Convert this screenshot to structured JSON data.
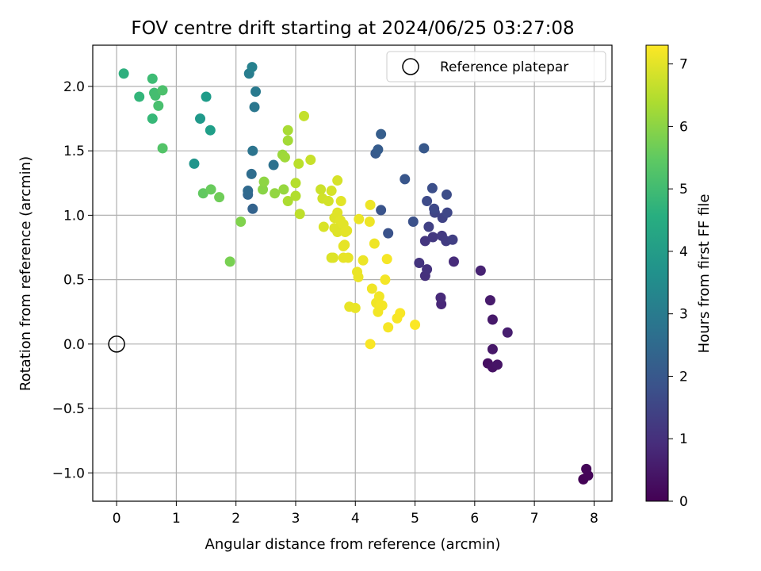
{
  "chart_data": {
    "type": "scatter",
    "title": "FOV centre drift starting at 2024/06/25 03:27:08",
    "xlabel": "Angular distance from reference (arcmin)",
    "ylabel": "Rotation from reference (arcmin)",
    "xlim": [
      -0.4,
      8.3
    ],
    "ylim": [
      -1.22,
      2.32
    ],
    "xticks": [
      "0",
      "1",
      "2",
      "3",
      "4",
      "5",
      "6",
      "7",
      "8"
    ],
    "yticks": [
      "−1.0",
      "−0.5",
      "0.0",
      "0.5",
      "1.0",
      "1.5",
      "2.0"
    ],
    "grid": true,
    "legend": {
      "placement": "top-right",
      "entries": [
        "Reference platepar"
      ]
    },
    "reference": {
      "x": 0,
      "y": 0
    },
    "colorbar": {
      "label": "Hours from first FF file",
      "min": 0,
      "max": 7.3,
      "ticks": [
        "0",
        "1",
        "2",
        "3",
        "4",
        "5",
        "6",
        "7"
      ],
      "colormap": "viridis"
    },
    "points": [
      {
        "x": 7.82,
        "y": -1.05,
        "h": 0.05
      },
      {
        "x": 7.9,
        "y": -1.02,
        "h": 0.08
      },
      {
        "x": 7.87,
        "y": -0.97,
        "h": 0.1
      },
      {
        "x": 6.22,
        "y": -0.15,
        "h": 0.3
      },
      {
        "x": 6.3,
        "y": -0.18,
        "h": 0.35
      },
      {
        "x": 6.38,
        "y": -0.16,
        "h": 0.4
      },
      {
        "x": 6.3,
        "y": -0.04,
        "h": 0.45
      },
      {
        "x": 6.3,
        "y": 0.19,
        "h": 0.5
      },
      {
        "x": 6.26,
        "y": 0.34,
        "h": 0.55
      },
      {
        "x": 6.55,
        "y": 0.09,
        "h": 0.6
      },
      {
        "x": 6.1,
        "y": 0.57,
        "h": 0.7
      },
      {
        "x": 5.44,
        "y": 0.31,
        "h": 0.8
      },
      {
        "x": 5.43,
        "y": 0.36,
        "h": 0.85
      },
      {
        "x": 5.65,
        "y": 0.64,
        "h": 0.9
      },
      {
        "x": 5.17,
        "y": 0.53,
        "h": 1.0
      },
      {
        "x": 5.2,
        "y": 0.58,
        "h": 1.05
      },
      {
        "x": 5.07,
        "y": 0.63,
        "h": 1.1
      },
      {
        "x": 5.17,
        "y": 0.8,
        "h": 1.15
      },
      {
        "x": 5.3,
        "y": 0.83,
        "h": 1.2
      },
      {
        "x": 5.45,
        "y": 0.84,
        "h": 1.25
      },
      {
        "x": 5.52,
        "y": 0.8,
        "h": 1.3
      },
      {
        "x": 5.63,
        "y": 0.81,
        "h": 1.35
      },
      {
        "x": 5.23,
        "y": 0.91,
        "h": 1.4
      },
      {
        "x": 5.46,
        "y": 0.98,
        "h": 1.45
      },
      {
        "x": 5.33,
        "y": 1.02,
        "h": 1.5
      },
      {
        "x": 5.54,
        "y": 1.02,
        "h": 1.55
      },
      {
        "x": 5.32,
        "y": 1.05,
        "h": 1.6
      },
      {
        "x": 5.2,
        "y": 1.11,
        "h": 1.65
      },
      {
        "x": 5.53,
        "y": 1.16,
        "h": 1.7
      },
      {
        "x": 5.29,
        "y": 1.21,
        "h": 1.75
      },
      {
        "x": 4.97,
        "y": 0.95,
        "h": 1.8
      },
      {
        "x": 4.55,
        "y": 0.86,
        "h": 1.85
      },
      {
        "x": 4.43,
        "y": 1.04,
        "h": 1.9
      },
      {
        "x": 4.83,
        "y": 1.28,
        "h": 1.95
      },
      {
        "x": 5.15,
        "y": 1.52,
        "h": 2.0
      },
      {
        "x": 4.34,
        "y": 1.48,
        "h": 2.05
      },
      {
        "x": 4.38,
        "y": 1.51,
        "h": 2.1
      },
      {
        "x": 4.43,
        "y": 1.63,
        "h": 2.15
      },
      {
        "x": 2.28,
        "y": 1.05,
        "h": 2.3
      },
      {
        "x": 2.2,
        "y": 1.16,
        "h": 2.4
      },
      {
        "x": 2.2,
        "y": 1.19,
        "h": 2.5
      },
      {
        "x": 2.26,
        "y": 1.32,
        "h": 2.6
      },
      {
        "x": 2.63,
        "y": 1.39,
        "h": 2.7
      },
      {
        "x": 2.28,
        "y": 1.5,
        "h": 2.8
      },
      {
        "x": 2.31,
        "y": 1.84,
        "h": 2.9
      },
      {
        "x": 2.33,
        "y": 1.96,
        "h": 3.0
      },
      {
        "x": 2.22,
        "y": 2.1,
        "h": 3.1
      },
      {
        "x": 2.27,
        "y": 2.15,
        "h": 3.2
      },
      {
        "x": 1.3,
        "y": 1.4,
        "h": 3.8
      },
      {
        "x": 1.4,
        "y": 1.75,
        "h": 3.9
      },
      {
        "x": 1.5,
        "y": 1.92,
        "h": 4.0
      },
      {
        "x": 1.57,
        "y": 1.66,
        "h": 4.1
      },
      {
        "x": 0.12,
        "y": 2.1,
        "h": 4.6
      },
      {
        "x": 0.38,
        "y": 1.92,
        "h": 4.8
      },
      {
        "x": 0.6,
        "y": 1.75,
        "h": 4.9
      },
      {
        "x": 0.6,
        "y": 2.06,
        "h": 5.0
      },
      {
        "x": 0.63,
        "y": 1.95,
        "h": 5.05
      },
      {
        "x": 0.65,
        "y": 1.93,
        "h": 5.1
      },
      {
        "x": 0.7,
        "y": 1.85,
        "h": 5.15
      },
      {
        "x": 0.77,
        "y": 1.97,
        "h": 5.2
      },
      {
        "x": 0.77,
        "y": 1.52,
        "h": 5.3
      },
      {
        "x": 1.45,
        "y": 1.17,
        "h": 5.5
      },
      {
        "x": 1.58,
        "y": 1.2,
        "h": 5.6
      },
      {
        "x": 1.72,
        "y": 1.14,
        "h": 5.7
      },
      {
        "x": 1.9,
        "y": 0.64,
        "h": 5.8
      },
      {
        "x": 2.08,
        "y": 0.95,
        "h": 5.9
      },
      {
        "x": 2.45,
        "y": 1.2,
        "h": 6.0
      },
      {
        "x": 2.47,
        "y": 1.26,
        "h": 6.05
      },
      {
        "x": 2.65,
        "y": 1.17,
        "h": 6.1
      },
      {
        "x": 2.8,
        "y": 1.2,
        "h": 6.15
      },
      {
        "x": 2.78,
        "y": 1.47,
        "h": 6.2
      },
      {
        "x": 2.82,
        "y": 1.45,
        "h": 6.25
      },
      {
        "x": 2.87,
        "y": 1.58,
        "h": 6.3
      },
      {
        "x": 2.87,
        "y": 1.66,
        "h": 6.35
      },
      {
        "x": 2.87,
        "y": 1.11,
        "h": 6.4
      },
      {
        "x": 3.0,
        "y": 1.15,
        "h": 6.45
      },
      {
        "x": 3.0,
        "y": 1.25,
        "h": 6.5
      },
      {
        "x": 3.05,
        "y": 1.4,
        "h": 6.55
      },
      {
        "x": 3.07,
        "y": 1.01,
        "h": 6.6
      },
      {
        "x": 3.14,
        "y": 1.77,
        "h": 6.65
      },
      {
        "x": 3.25,
        "y": 1.43,
        "h": 6.7
      },
      {
        "x": 3.42,
        "y": 1.2,
        "h": 6.75
      },
      {
        "x": 3.45,
        "y": 1.13,
        "h": 6.8
      },
      {
        "x": 3.55,
        "y": 1.11,
        "h": 6.82
      },
      {
        "x": 3.6,
        "y": 1.19,
        "h": 6.85
      },
      {
        "x": 3.7,
        "y": 1.27,
        "h": 6.87
      },
      {
        "x": 3.47,
        "y": 0.91,
        "h": 6.9
      },
      {
        "x": 3.6,
        "y": 0.67,
        "h": 6.92
      },
      {
        "x": 3.63,
        "y": 0.67,
        "h": 6.94
      },
      {
        "x": 3.65,
        "y": 0.9,
        "h": 6.95
      },
      {
        "x": 3.7,
        "y": 0.87,
        "h": 6.96
      },
      {
        "x": 3.65,
        "y": 0.98,
        "h": 6.97
      },
      {
        "x": 3.7,
        "y": 1.02,
        "h": 6.98
      },
      {
        "x": 3.75,
        "y": 0.96,
        "h": 6.99
      },
      {
        "x": 3.76,
        "y": 1.11,
        "h": 7.0
      },
      {
        "x": 3.8,
        "y": 0.93,
        "h": 7.0
      },
      {
        "x": 3.83,
        "y": 0.87,
        "h": 7.01
      },
      {
        "x": 3.86,
        "y": 0.88,
        "h": 7.02
      },
      {
        "x": 3.8,
        "y": 0.76,
        "h": 7.03
      },
      {
        "x": 3.82,
        "y": 0.77,
        "h": 7.04
      },
      {
        "x": 3.8,
        "y": 0.67,
        "h": 7.05
      },
      {
        "x": 3.88,
        "y": 0.67,
        "h": 7.06
      },
      {
        "x": 3.9,
        "y": 0.29,
        "h": 7.07
      },
      {
        "x": 4.0,
        "y": 0.28,
        "h": 7.08
      },
      {
        "x": 4.03,
        "y": 0.56,
        "h": 7.09
      },
      {
        "x": 4.05,
        "y": 0.52,
        "h": 7.1
      },
      {
        "x": 4.06,
        "y": 0.97,
        "h": 7.1
      },
      {
        "x": 4.13,
        "y": 0.65,
        "h": 7.11
      },
      {
        "x": 4.25,
        "y": 1.08,
        "h": 7.12
      },
      {
        "x": 4.24,
        "y": 0.95,
        "h": 7.13
      },
      {
        "x": 4.32,
        "y": 0.78,
        "h": 7.14
      },
      {
        "x": 4.28,
        "y": 0.43,
        "h": 7.15
      },
      {
        "x": 4.35,
        "y": 0.32,
        "h": 7.16
      },
      {
        "x": 4.4,
        "y": 0.37,
        "h": 7.17
      },
      {
        "x": 4.38,
        "y": 0.25,
        "h": 7.18
      },
      {
        "x": 4.42,
        "y": 0.3,
        "h": 7.19
      },
      {
        "x": 4.45,
        "y": 0.3,
        "h": 7.2
      },
      {
        "x": 4.5,
        "y": 0.5,
        "h": 7.2
      },
      {
        "x": 4.53,
        "y": 0.66,
        "h": 7.21
      },
      {
        "x": 4.55,
        "y": 0.13,
        "h": 7.22
      },
      {
        "x": 4.7,
        "y": 0.2,
        "h": 7.23
      },
      {
        "x": 4.75,
        "y": 0.24,
        "h": 7.24
      },
      {
        "x": 4.25,
        "y": 0.0,
        "h": 7.25
      },
      {
        "x": 5.0,
        "y": 0.15,
        "h": 7.28
      }
    ]
  }
}
